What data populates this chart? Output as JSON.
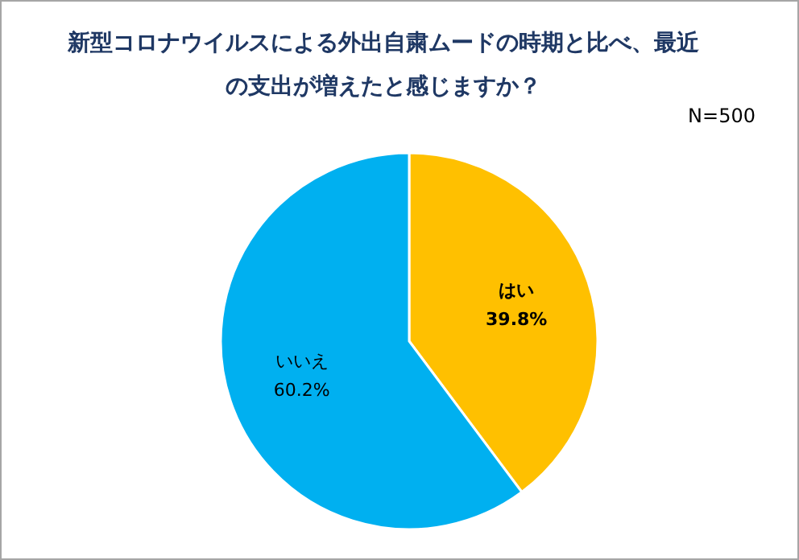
{
  "chart_data": {
    "type": "pie",
    "title": "新型コロナウイルスによる外出自粛ムードの時期と比べ、最近の支出が増えたと感じますか？",
    "annotations": [
      "N=500"
    ],
    "categories": [
      "はい",
      "いいえ"
    ],
    "values": [
      39.8,
      60.2
    ],
    "colors": [
      "#ffc000",
      "#00b0f0"
    ],
    "value_labels": [
      "39.8%",
      "60.2%"
    ]
  }
}
